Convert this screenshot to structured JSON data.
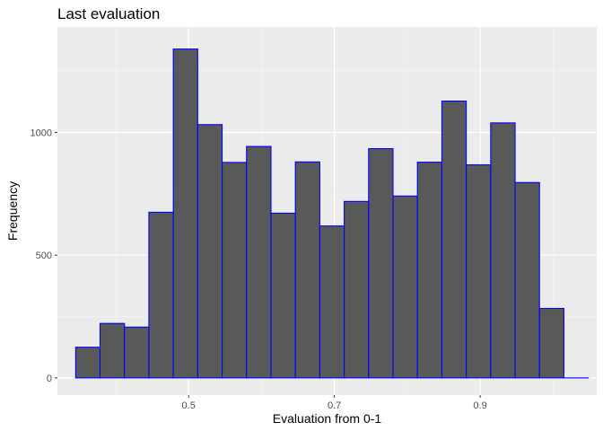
{
  "chart_data": {
    "type": "bar",
    "title": "Last evaluation",
    "xlabel": "Evaluation from 0-1",
    "ylabel": "Frequency",
    "xlim": [
      0.32,
      1.06
    ],
    "ylim": [
      -70,
      1430
    ],
    "x_ticks": [
      0.5,
      0.7,
      0.9
    ],
    "x_tick_labels": [
      "0.5",
      "0.7",
      "0.9"
    ],
    "y_ticks": [
      0,
      500,
      1000
    ],
    "y_tick_labels": [
      "0",
      "500",
      "1000"
    ],
    "bin_width": 0.0335,
    "bin_starts": [
      0.345,
      0.3785,
      0.412,
      0.4455,
      0.479,
      0.5125,
      0.546,
      0.5795,
      0.613,
      0.6465,
      0.68,
      0.7135,
      0.747,
      0.7805,
      0.814,
      0.8475,
      0.881,
      0.9145,
      0.948,
      0.9815,
      1.015
    ],
    "values": [
      125,
      222,
      207,
      675,
      1340,
      1032,
      878,
      943,
      671,
      880,
      619,
      719,
      934,
      741,
      879,
      1128,
      868,
      1039,
      796,
      283,
      0
    ],
    "grid": true,
    "colors": {
      "panel_background": "#ebebeb",
      "grid_major": "#ffffff",
      "grid_minor": "#f5f5f5",
      "bar_fill": "#595959",
      "bar_outline": "#0000ff"
    }
  }
}
